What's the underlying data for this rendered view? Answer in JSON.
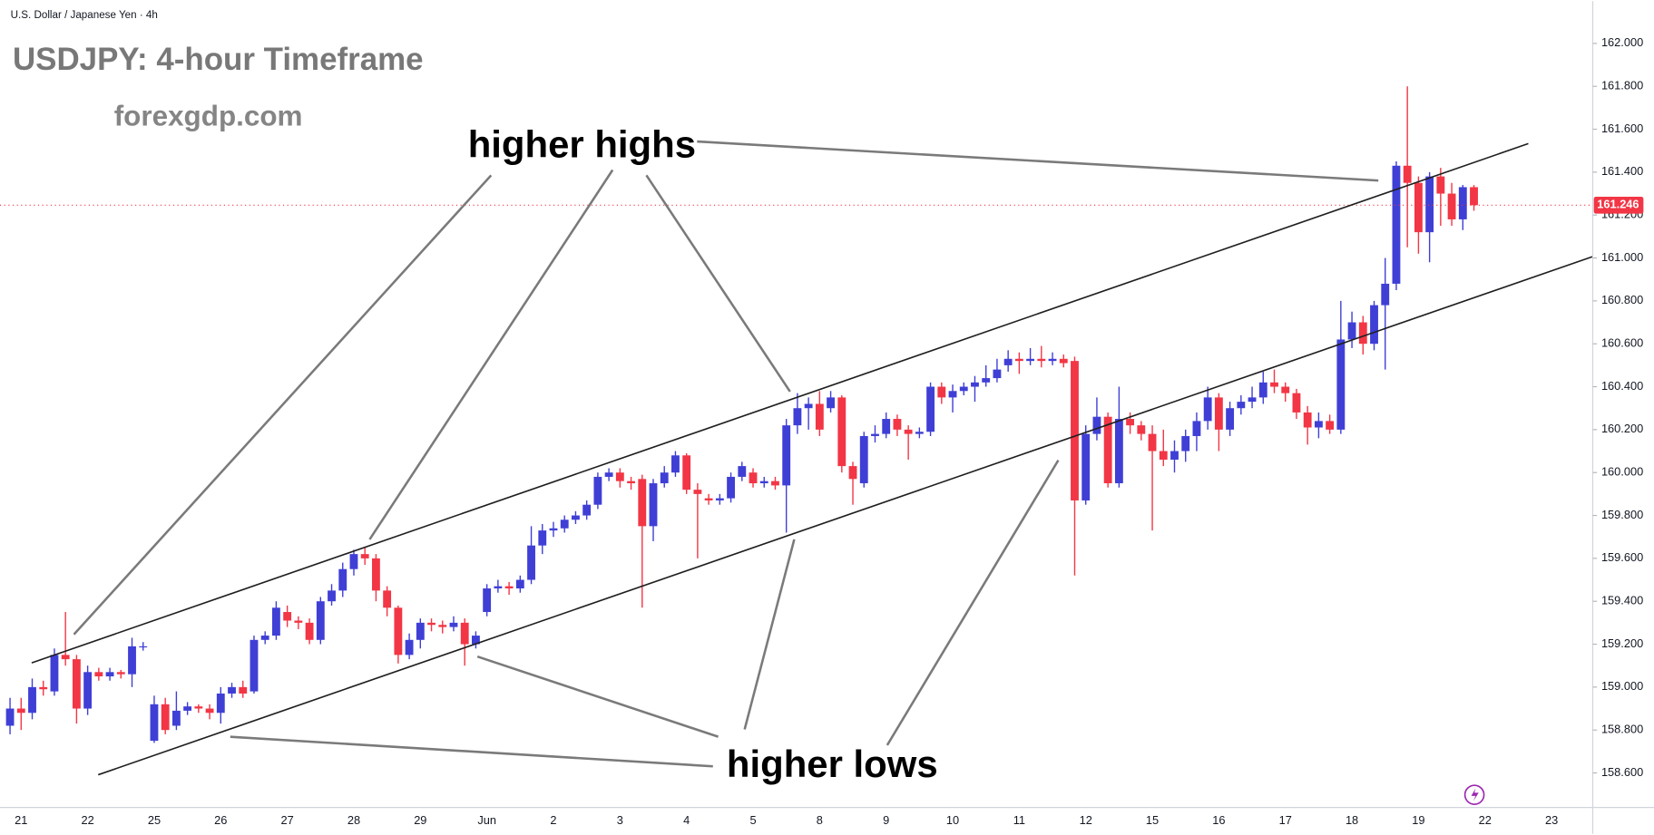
{
  "chart_data": {
    "type": "candlestick",
    "symbol_label": "U.S. Dollar / Japanese Yen · 4h",
    "title": "USDJPY: 4-hour Timeframe",
    "subtitle": "forexgdp.com",
    "annotations": [
      "higher highs",
      "higher lows"
    ],
    "up_color": "#3f3fd6",
    "down_color": "#f23645",
    "categories": [
      null,
      "21",
      null,
      null,
      null,
      null,
      null,
      "22",
      null,
      null,
      null,
      null,
      null,
      "25",
      null,
      null,
      null,
      null,
      null,
      "26",
      null,
      null,
      null,
      null,
      null,
      "27",
      null,
      null,
      null,
      null,
      null,
      "28",
      null,
      null,
      null,
      null,
      null,
      "29",
      null,
      null,
      null,
      null,
      null,
      "Jun",
      null,
      null,
      null,
      null,
      null,
      "2",
      null,
      null,
      null,
      null,
      null,
      "3",
      null,
      null,
      null,
      null,
      null,
      "4",
      null,
      null,
      null,
      null,
      null,
      "5",
      null,
      null,
      null,
      null,
      null,
      "8",
      null,
      null,
      null,
      null,
      null,
      "9",
      null,
      null,
      null,
      null,
      null,
      "10",
      null,
      null,
      null,
      null,
      null,
      "11",
      null,
      null,
      null,
      null,
      null,
      "12",
      null,
      null,
      null,
      null,
      null,
      "15",
      null,
      null,
      null,
      null,
      null,
      "16",
      null,
      null,
      null,
      null,
      null,
      "17",
      null,
      null,
      null,
      null,
      null,
      "18",
      null,
      null,
      null,
      null,
      null,
      "19",
      null,
      null,
      null,
      null,
      null,
      "22",
      null,
      null,
      null,
      null,
      null,
      "23"
    ],
    "open": [
      158.82,
      158.9,
      158.88,
      159.0,
      158.98,
      159.15,
      159.13,
      158.9,
      159.07,
      159.05,
      159.07,
      159.06,
      159.19,
      158.75,
      158.92,
      158.82,
      158.89,
      158.91,
      158.9,
      158.88,
      158.97,
      159.0,
      158.98,
      159.22,
      159.24,
      159.35,
      159.31,
      159.3,
      159.22,
      159.4,
      159.45,
      159.55,
      159.62,
      159.6,
      159.45,
      159.37,
      159.15,
      159.22,
      159.3,
      159.29,
      159.28,
      159.3,
      159.2,
      159.35,
      159.46,
      159.47,
      159.46,
      159.5,
      159.66,
      159.73,
      159.74,
      159.78,
      159.8,
      159.85,
      159.98,
      160.0,
      159.96,
      159.97,
      159.75,
      159.95,
      160.0,
      160.08,
      159.92,
      159.88,
      159.87,
      159.88,
      159.98,
      160.0,
      159.95,
      159.96,
      159.94,
      160.22,
      160.3,
      160.32,
      160.3,
      160.35,
      160.03,
      159.95,
      160.17,
      160.18,
      160.25,
      160.2,
      160.18,
      160.19,
      160.4,
      160.35,
      160.38,
      160.4,
      160.42,
      160.44,
      160.5,
      160.53,
      160.52,
      160.53,
      160.52,
      160.53,
      160.52,
      159.87,
      160.18,
      160.26,
      159.95,
      160.25,
      160.22,
      160.18,
      160.1,
      160.06,
      160.1,
      160.17,
      160.24,
      160.35,
      160.2,
      160.3,
      160.33,
      160.35,
      160.42,
      160.4,
      160.37,
      160.28,
      160.21,
      160.24,
      160.2,
      160.62,
      160.7,
      160.6,
      160.78,
      160.88,
      161.43,
      161.35,
      161.12,
      161.38,
      161.3,
      161.18,
      161.33,
      null,
      null,
      null,
      null,
      null,
      null,
      null
    ],
    "high": [
      158.95,
      158.95,
      159.04,
      159.03,
      159.18,
      159.35,
      159.15,
      159.1,
      159.09,
      159.09,
      159.08,
      159.23,
      159.21,
      158.96,
      158.95,
      158.98,
      158.93,
      158.92,
      158.92,
      159.0,
      159.02,
      159.03,
      159.24,
      159.26,
      159.4,
      159.38,
      159.33,
      159.32,
      159.42,
      159.48,
      159.58,
      159.64,
      159.65,
      159.62,
      159.47,
      159.38,
      159.25,
      159.32,
      159.32,
      159.31,
      159.33,
      159.32,
      159.26,
      159.48,
      159.5,
      159.49,
      159.52,
      159.75,
      159.76,
      159.77,
      159.8,
      159.82,
      159.87,
      160.0,
      160.02,
      160.02,
      159.98,
      159.99,
      159.97,
      160.03,
      160.1,
      160.09,
      159.95,
      159.9,
      159.9,
      160.0,
      160.05,
      160.02,
      159.98,
      159.98,
      160.25,
      160.37,
      160.35,
      160.38,
      160.38,
      160.36,
      160.05,
      160.19,
      160.22,
      160.28,
      160.27,
      160.22,
      160.21,
      160.42,
      160.42,
      160.41,
      160.42,
      160.45,
      160.5,
      160.53,
      160.57,
      160.56,
      160.58,
      160.59,
      160.56,
      160.55,
      160.54,
      160.22,
      160.35,
      160.28,
      160.4,
      160.28,
      160.24,
      160.22,
      160.2,
      160.15,
      160.2,
      160.28,
      160.4,
      160.37,
      160.33,
      160.36,
      160.4,
      160.47,
      160.48,
      160.42,
      160.39,
      160.31,
      160.28,
      160.27,
      160.8,
      160.75,
      160.73,
      160.8,
      161.0,
      161.45,
      161.8,
      161.38,
      161.4,
      161.42,
      161.35,
      161.34,
      161.34,
      null,
      null,
      null,
      null,
      null,
      null,
      null
    ],
    "low": [
      158.78,
      158.8,
      158.85,
      158.96,
      158.96,
      159.1,
      158.83,
      158.87,
      159.03,
      159.03,
      159.04,
      159.0,
      159.17,
      158.74,
      158.78,
      158.8,
      158.87,
      158.88,
      158.85,
      158.83,
      158.95,
      158.95,
      158.97,
      159.2,
      159.22,
      159.28,
      159.27,
      159.2,
      159.2,
      159.38,
      159.42,
      159.52,
      159.57,
      159.4,
      159.33,
      159.11,
      159.13,
      159.18,
      159.26,
      159.25,
      159.26,
      159.1,
      159.18,
      159.33,
      159.44,
      159.43,
      159.44,
      159.48,
      159.62,
      159.7,
      159.72,
      159.76,
      159.78,
      159.83,
      159.96,
      159.93,
      159.92,
      159.37,
      159.68,
      159.93,
      159.98,
      159.9,
      159.6,
      159.85,
      159.85,
      159.86,
      159.96,
      159.93,
      159.93,
      159.92,
      159.72,
      160.18,
      160.2,
      160.17,
      160.28,
      160.0,
      159.85,
      159.93,
      160.14,
      160.16,
      160.17,
      160.06,
      160.16,
      160.17,
      160.32,
      160.28,
      160.36,
      160.33,
      160.4,
      160.42,
      160.47,
      160.46,
      160.5,
      160.49,
      160.5,
      160.49,
      159.52,
      159.85,
      160.15,
      159.93,
      159.93,
      160.18,
      160.15,
      159.73,
      160.03,
      160.0,
      160.05,
      160.1,
      160.2,
      160.1,
      160.17,
      160.27,
      160.3,
      160.32,
      160.37,
      160.33,
      160.25,
      160.13,
      160.16,
      160.18,
      160.18,
      160.58,
      160.55,
      160.57,
      160.48,
      160.85,
      161.05,
      161.02,
      160.98,
      161.15,
      161.15,
      161.13,
      161.22,
      null,
      null,
      null,
      null,
      null,
      null,
      null
    ],
    "close": [
      158.9,
      158.88,
      159.0,
      158.99,
      159.15,
      159.13,
      158.9,
      159.07,
      159.05,
      159.07,
      159.06,
      159.19,
      159.19,
      158.92,
      158.8,
      158.89,
      158.91,
      158.9,
      158.88,
      158.97,
      159.0,
      158.97,
      159.22,
      159.24,
      159.37,
      159.31,
      159.3,
      159.22,
      159.4,
      159.45,
      159.55,
      159.62,
      159.6,
      159.45,
      159.37,
      159.15,
      159.22,
      159.3,
      159.29,
      159.28,
      159.3,
      159.2,
      159.24,
      159.46,
      159.47,
      159.46,
      159.5,
      159.66,
      159.73,
      159.74,
      159.78,
      159.8,
      159.85,
      159.98,
      160.0,
      159.96,
      159.95,
      159.75,
      159.95,
      160.0,
      160.08,
      159.92,
      159.9,
      159.87,
      159.88,
      159.98,
      160.03,
      159.95,
      159.96,
      159.94,
      160.22,
      160.3,
      160.32,
      160.2,
      160.35,
      160.03,
      159.97,
      160.17,
      160.18,
      160.25,
      160.2,
      160.18,
      160.19,
      160.4,
      160.35,
      160.38,
      160.4,
      160.42,
      160.44,
      160.48,
      160.53,
      160.52,
      160.53,
      160.52,
      160.53,
      160.51,
      159.87,
      160.18,
      160.26,
      159.95,
      160.25,
      160.22,
      160.18,
      160.1,
      160.06,
      160.1,
      160.17,
      160.24,
      160.35,
      160.2,
      160.3,
      160.33,
      160.35,
      160.42,
      160.4,
      160.37,
      160.28,
      160.21,
      160.24,
      160.2,
      160.62,
      160.7,
      160.6,
      160.78,
      160.88,
      161.43,
      161.35,
      161.12,
      161.38,
      161.3,
      161.18,
      161.33,
      161.246,
      null,
      null,
      null,
      null,
      null,
      null,
      null
    ],
    "ylim": [
      158.439,
      162.197
    ],
    "yticks": [
      {
        "value": 158.6,
        "label": "158.600"
      },
      {
        "value": 158.8,
        "label": "158.800"
      },
      {
        "value": 159,
        "label": "159.000"
      },
      {
        "value": 159.2,
        "label": "159.200"
      },
      {
        "value": 159.4,
        "label": "159.400"
      },
      {
        "value": 159.6,
        "label": "159.600"
      },
      {
        "value": 159.8,
        "label": "159.800"
      },
      {
        "value": 160,
        "label": "160.000"
      },
      {
        "value": 160.2,
        "label": "160.200"
      },
      {
        "value": 160.4,
        "label": "160.400"
      },
      {
        "value": 160.6,
        "label": "160.600"
      },
      {
        "value": 160.8,
        "label": "160.800"
      },
      {
        "value": 161,
        "label": "161.000"
      },
      {
        "value": 161.2,
        "label": "161.200"
      },
      {
        "value": 161.4,
        "label": "161.400"
      },
      {
        "value": 161.6,
        "label": "161.600"
      },
      {
        "value": 161.8,
        "label": "161.800"
      },
      {
        "value": 162,
        "label": "162.000"
      }
    ]
  }
}
